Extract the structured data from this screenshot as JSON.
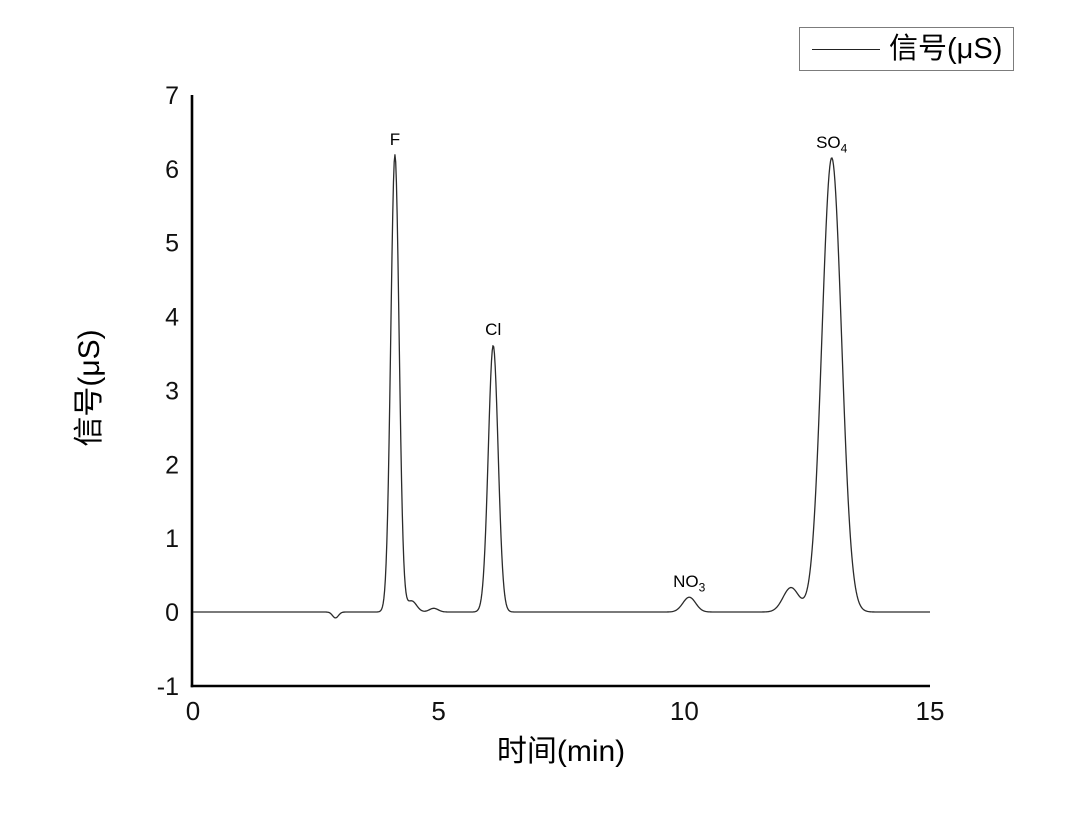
{
  "figure": {
    "background": "#ffffff",
    "axis_color": "#000000",
    "trace_color": "#2b2b2b",
    "legend": {
      "label": "信号(μS)",
      "border_color": "#7c7c7c"
    }
  },
  "chart_data": {
    "type": "line",
    "title": "",
    "xlabel": "时间(min)",
    "ylabel": "信号(μS)",
    "legend_entries": [
      "信号(μS)"
    ],
    "legend_position": "top-right",
    "grid": false,
    "xlim": [
      0,
      15
    ],
    "ylim": [
      -1,
      7
    ],
    "x_ticks": [
      0,
      5,
      10,
      15
    ],
    "y_ticks": [
      -1,
      0,
      1,
      2,
      3,
      4,
      5,
      6,
      7
    ],
    "baseline_uS": 0,
    "series_name": "信号(μS)",
    "peaks": [
      {
        "label_main": "F",
        "label_sub": "",
        "time_min": 4.11,
        "height_uS": 6.19,
        "sigma_min": 0.085
      },
      {
        "label_main": "Cl",
        "label_sub": "",
        "time_min": 6.11,
        "height_uS": 3.61,
        "sigma_min": 0.1
      },
      {
        "label_main": "NO",
        "label_sub": "3",
        "time_min": 10.1,
        "height_uS": 0.2,
        "sigma_min": 0.13
      },
      {
        "label_main": "",
        "label_sub": "",
        "time_min": 12.17,
        "height_uS": 0.33,
        "sigma_min": 0.16
      },
      {
        "label_main": "SO",
        "label_sub": "4",
        "time_min": 13.0,
        "height_uS": 6.15,
        "sigma_min": 0.2
      }
    ],
    "minor_features": [
      {
        "type": "baseline-dip",
        "time_min": 2.9,
        "height_uS": -0.08,
        "sigma_min": 0.06
      },
      {
        "type": "shoulder",
        "time_min": 4.45,
        "height_uS": 0.15,
        "sigma_min": 0.1
      },
      {
        "type": "bump",
        "time_min": 4.9,
        "height_uS": 0.05,
        "sigma_min": 0.09
      }
    ]
  }
}
